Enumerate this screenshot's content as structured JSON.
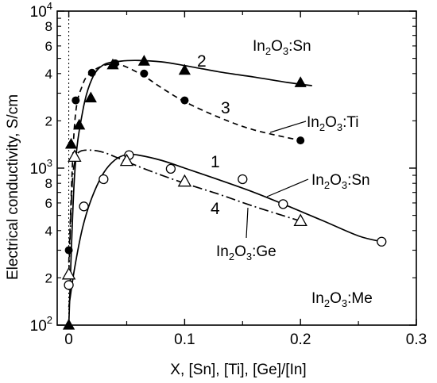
{
  "chart_data": {
    "type": "scatter",
    "title": "",
    "xlabel": "X, [Sn], [Ti], [Ge]/[In]",
    "ylabel": "Electrical conductivity, S/cm",
    "xlim": [
      -0.01,
      0.3
    ],
    "ylim": [
      100,
      10000
    ],
    "y_scale": "log",
    "grid": false,
    "x_ticks": [
      {
        "v": 0,
        "label": "0"
      },
      {
        "v": 0.1,
        "label": "0.1"
      },
      {
        "v": 0.2,
        "label": "0.2"
      },
      {
        "v": 0.3,
        "label": "0.3"
      }
    ],
    "y_major_ticks": [
      {
        "v": 100,
        "base": "10",
        "exp": "2"
      },
      {
        "v": 1000,
        "base": "10",
        "exp": "3"
      },
      {
        "v": 10000,
        "base": "10",
        "exp": "4"
      }
    ],
    "y_minor_ticks": [
      {
        "v": 200,
        "label": "2"
      },
      {
        "v": 400,
        "label": "4"
      },
      {
        "v": 600,
        "label": "6"
      },
      {
        "v": 800,
        "label": "8"
      },
      {
        "v": 2000,
        "label": "2"
      },
      {
        "v": 4000,
        "label": "4"
      },
      {
        "v": 6000,
        "label": "6"
      },
      {
        "v": 8000,
        "label": "8"
      }
    ],
    "series": [
      {
        "name": "In2O3:Sn",
        "number": "2",
        "marker": "filled-triangle",
        "line": "solid",
        "x": [
          0,
          0.002,
          0.009,
          0.019,
          0.038,
          0.065,
          0.1,
          0.2
        ],
        "y": [
          100,
          1420,
          1880,
          2800,
          4550,
          4800,
          4200,
          3500
        ],
        "curve_x": [
          0.0,
          0.005,
          0.012,
          0.02,
          0.03,
          0.045,
          0.06,
          0.08,
          0.1,
          0.13,
          0.16,
          0.19,
          0.21
        ],
        "curve_y": [
          100,
          900,
          2300,
          3700,
          4550,
          4800,
          4850,
          4750,
          4500,
          4100,
          3800,
          3500,
          3350
        ]
      },
      {
        "name": "In2O3:Ti",
        "number": "3",
        "marker": "filled-circle",
        "line": "dashed",
        "x": [
          0,
          0.006,
          0.02,
          0.04,
          0.065,
          0.1,
          0.2
        ],
        "y": [
          300,
          2700,
          4050,
          4650,
          4000,
          2700,
          1500
        ],
        "curve_x": [
          0.0,
          0.005,
          0.012,
          0.02,
          0.03,
          0.04,
          0.05,
          0.065,
          0.08,
          0.1,
          0.13,
          0.16,
          0.2
        ],
        "curve_y": [
          250,
          1900,
          3400,
          4100,
          4500,
          4600,
          4400,
          3850,
          3250,
          2650,
          2100,
          1750,
          1500
        ]
      },
      {
        "name": "In2O3:Sn",
        "number": "1",
        "marker": "open-circle",
        "line": "solid",
        "x": [
          0,
          0.013,
          0.03,
          0.052,
          0.088,
          0.15,
          0.185,
          0.27
        ],
        "y": [
          180,
          570,
          850,
          1210,
          990,
          850,
          590,
          340
        ],
        "curve_x": [
          0.0,
          0.005,
          0.012,
          0.02,
          0.03,
          0.04,
          0.05,
          0.06,
          0.08,
          0.1,
          0.13,
          0.16,
          0.19,
          0.22,
          0.25,
          0.27
        ],
        "curve_y": [
          130,
          230,
          420,
          650,
          930,
          1130,
          1220,
          1210,
          1120,
          1000,
          840,
          700,
          570,
          460,
          370,
          340
        ]
      },
      {
        "name": "In2O3:Ge",
        "number": "4",
        "marker": "open-triangle",
        "line": "dash-dot",
        "x": [
          0,
          0.005,
          0.05,
          0.1,
          0.2
        ],
        "y": [
          210,
          1180,
          1110,
          820,
          460
        ],
        "curve_x": [
          0.0,
          0.003,
          0.006,
          0.01,
          0.02,
          0.03,
          0.04,
          0.05,
          0.07,
          0.1,
          0.13,
          0.16,
          0.2
        ],
        "curve_y": [
          210,
          800,
          1150,
          1280,
          1300,
          1260,
          1180,
          1100,
          960,
          800,
          680,
          570,
          460
        ]
      }
    ],
    "vertical_reference_x": 0,
    "annotations": {
      "sn_top_label": {
        "main": "In",
        "sub1": "2",
        "mid": "O",
        "sub2": "3",
        "tail": ":Sn"
      },
      "ti_label": {
        "main": "In",
        "sub1": "2",
        "mid": "O",
        "sub2": "3",
        "tail": ":Ti"
      },
      "sn_mid_label": {
        "main": "In",
        "sub1": "2",
        "mid": "O",
        "sub2": "3",
        "tail": ":Sn"
      },
      "ge_label": {
        "main": "In",
        "sub1": "2",
        "mid": "O",
        "sub2": "3",
        "tail": ":Ge"
      },
      "me_label": {
        "main": "In",
        "sub1": "2",
        "mid": "O",
        "sub2": "3",
        "tail": ":Me"
      },
      "num_1": "1",
      "num_2": "2",
      "num_3": "3",
      "num_4": "4"
    }
  }
}
